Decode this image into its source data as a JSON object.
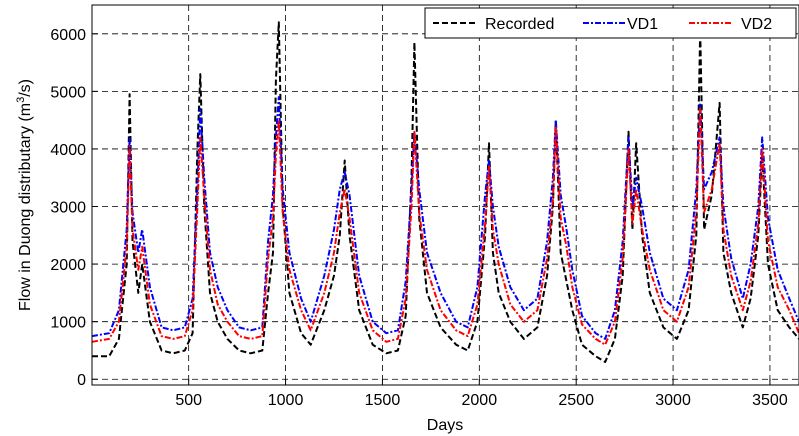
{
  "chart_data": {
    "type": "line",
    "xlabel": "Days",
    "ylabel_prefix": "Flow in Duong distributary (m",
    "ylabel_sup": "3",
    "ylabel_suffix": "/s)",
    "xlim": [
      1,
      3650
    ],
    "ylim": [
      -100,
      6500
    ],
    "xticks": [
      500,
      1000,
      1500,
      2000,
      2500,
      3000,
      3500
    ],
    "yticks": [
      0,
      1000,
      2000,
      3000,
      4000,
      5000,
      6000
    ],
    "grid": true,
    "legend_position": "top-right",
    "series": [
      {
        "name": "Recorded",
        "color": "#000000",
        "style": "dashed",
        "x": [
          1,
          90,
          140,
          180,
          195,
          210,
          240,
          260,
          300,
          360,
          420,
          480,
          520,
          545,
          560,
          580,
          610,
          650,
          700,
          760,
          820,
          880,
          910,
          935,
          950,
          965,
          985,
          1020,
          1080,
          1130,
          1200,
          1250,
          1280,
          1305,
          1330,
          1380,
          1450,
          1520,
          1580,
          1620,
          1650,
          1665,
          1690,
          1730,
          1800,
          1880,
          1940,
          1990,
          2030,
          2050,
          2070,
          2100,
          2160,
          2230,
          2300,
          2350,
          2380,
          2395,
          2420,
          2450,
          2480,
          2530,
          2600,
          2650,
          2700,
          2740,
          2770,
          2790,
          2810,
          2840,
          2880,
          2950,
          3020,
          3080,
          3120,
          3140,
          3160,
          3200,
          3240,
          3260,
          3300,
          3360,
          3400,
          3440,
          3460,
          3490,
          3540,
          3600,
          3650
        ],
        "values": [
          400,
          400,
          700,
          2000,
          4950,
          2400,
          1500,
          2000,
          1000,
          500,
          450,
          500,
          800,
          4000,
          5300,
          3000,
          1500,
          1000,
          700,
          500,
          450,
          500,
          1500,
          2200,
          5200,
          6200,
          3000,
          1500,
          800,
          600,
          1200,
          1800,
          2500,
          3800,
          2500,
          1200,
          600,
          450,
          500,
          1100,
          3500,
          5850,
          2800,
          1500,
          900,
          600,
          500,
          1000,
          2500,
          4100,
          2200,
          1500,
          1000,
          700,
          900,
          1800,
          3000,
          4500,
          2200,
          1700,
          1200,
          600,
          400,
          300,
          700,
          1800,
          4300,
          2600,
          4100,
          2500,
          1500,
          900,
          700,
          1200,
          2500,
          6050,
          2600,
          3200,
          4800,
          2200,
          1500,
          900,
          1400,
          2500,
          3900,
          2000,
          1200,
          900,
          700
        ]
      },
      {
        "name": "VD1",
        "color": "#0000ff",
        "style": "dashdot",
        "x": [
          1,
          90,
          140,
          180,
          195,
          210,
          240,
          260,
          300,
          360,
          420,
          480,
          520,
          545,
          560,
          580,
          610,
          650,
          700,
          760,
          820,
          880,
          910,
          935,
          950,
          965,
          985,
          1020,
          1080,
          1130,
          1200,
          1250,
          1280,
          1305,
          1330,
          1380,
          1450,
          1520,
          1580,
          1620,
          1650,
          1665,
          1690,
          1730,
          1800,
          1880,
          1940,
          1990,
          2030,
          2050,
          2070,
          2100,
          2160,
          2230,
          2300,
          2350,
          2380,
          2395,
          2420,
          2450,
          2480,
          2530,
          2600,
          2650,
          2700,
          2740,
          2770,
          2790,
          2810,
          2840,
          2880,
          2950,
          3020,
          3080,
          3120,
          3140,
          3160,
          3200,
          3240,
          3260,
          3300,
          3360,
          3400,
          3440,
          3460,
          3490,
          3540,
          3600,
          3650
        ],
        "values": [
          750,
          800,
          1200,
          2600,
          4200,
          2900,
          2200,
          2600,
          1600,
          900,
          850,
          900,
          1400,
          3300,
          4700,
          3500,
          2200,
          1600,
          1200,
          900,
          850,
          900,
          2400,
          3200,
          4200,
          4900,
          3300,
          2200,
          1400,
          1000,
          1800,
          2600,
          3300,
          3600,
          3200,
          1800,
          1000,
          800,
          850,
          1700,
          3300,
          4300,
          3300,
          2200,
          1500,
          1000,
          900,
          1600,
          3200,
          3800,
          3000,
          2300,
          1600,
          1200,
          1400,
          2400,
          3500,
          4500,
          3200,
          2600,
          1900,
          1100,
          800,
          700,
          1200,
          2400,
          4200,
          3000,
          3500,
          3000,
          2200,
          1400,
          1200,
          1900,
          3300,
          4800,
          3300,
          3600,
          4200,
          3000,
          2100,
          1400,
          2000,
          3000,
          4200,
          2800,
          1900,
          1400,
          1000
        ]
      },
      {
        "name": "VD2",
        "color": "#ff0000",
        "style": "dashdot",
        "x": [
          1,
          90,
          140,
          180,
          195,
          210,
          240,
          260,
          300,
          360,
          420,
          480,
          520,
          545,
          560,
          580,
          610,
          650,
          700,
          760,
          820,
          880,
          910,
          935,
          950,
          965,
          985,
          1020,
          1080,
          1130,
          1200,
          1250,
          1280,
          1305,
          1330,
          1380,
          1450,
          1520,
          1580,
          1620,
          1650,
          1665,
          1690,
          1730,
          1800,
          1880,
          1940,
          1990,
          2030,
          2050,
          2070,
          2100,
          2160,
          2230,
          2300,
          2350,
          2380,
          2395,
          2420,
          2450,
          2480,
          2530,
          2600,
          2650,
          2700,
          2740,
          2770,
          2790,
          2810,
          2840,
          2880,
          2950,
          3020,
          3080,
          3120,
          3140,
          3160,
          3200,
          3240,
          3260,
          3300,
          3360,
          3400,
          3440,
          3460,
          3490,
          3540,
          3600,
          3650
        ],
        "values": [
          650,
          700,
          1000,
          2300,
          4050,
          2600,
          1900,
          2300,
          1300,
          750,
          700,
          750,
          1200,
          3000,
          4200,
          3200,
          1900,
          1300,
          1000,
          750,
          700,
          750,
          2100,
          2800,
          3900,
          4500,
          2900,
          1900,
          1200,
          850,
          1500,
          2200,
          2900,
          3300,
          2800,
          1500,
          850,
          650,
          700,
          1400,
          3000,
          4300,
          2900,
          1900,
          1200,
          850,
          750,
          1300,
          2700,
          3700,
          2600,
          2000,
          1300,
          1000,
          1200,
          2100,
          3100,
          4400,
          2800,
          2300,
          1600,
          950,
          700,
          600,
          1000,
          2100,
          4000,
          2700,
          3300,
          2600,
          1900,
          1200,
          1000,
          1600,
          2900,
          4700,
          2900,
          3300,
          4100,
          2600,
          1800,
          1200,
          1700,
          2700,
          4000,
          2400,
          1600,
          1200,
          800
        ]
      }
    ]
  }
}
